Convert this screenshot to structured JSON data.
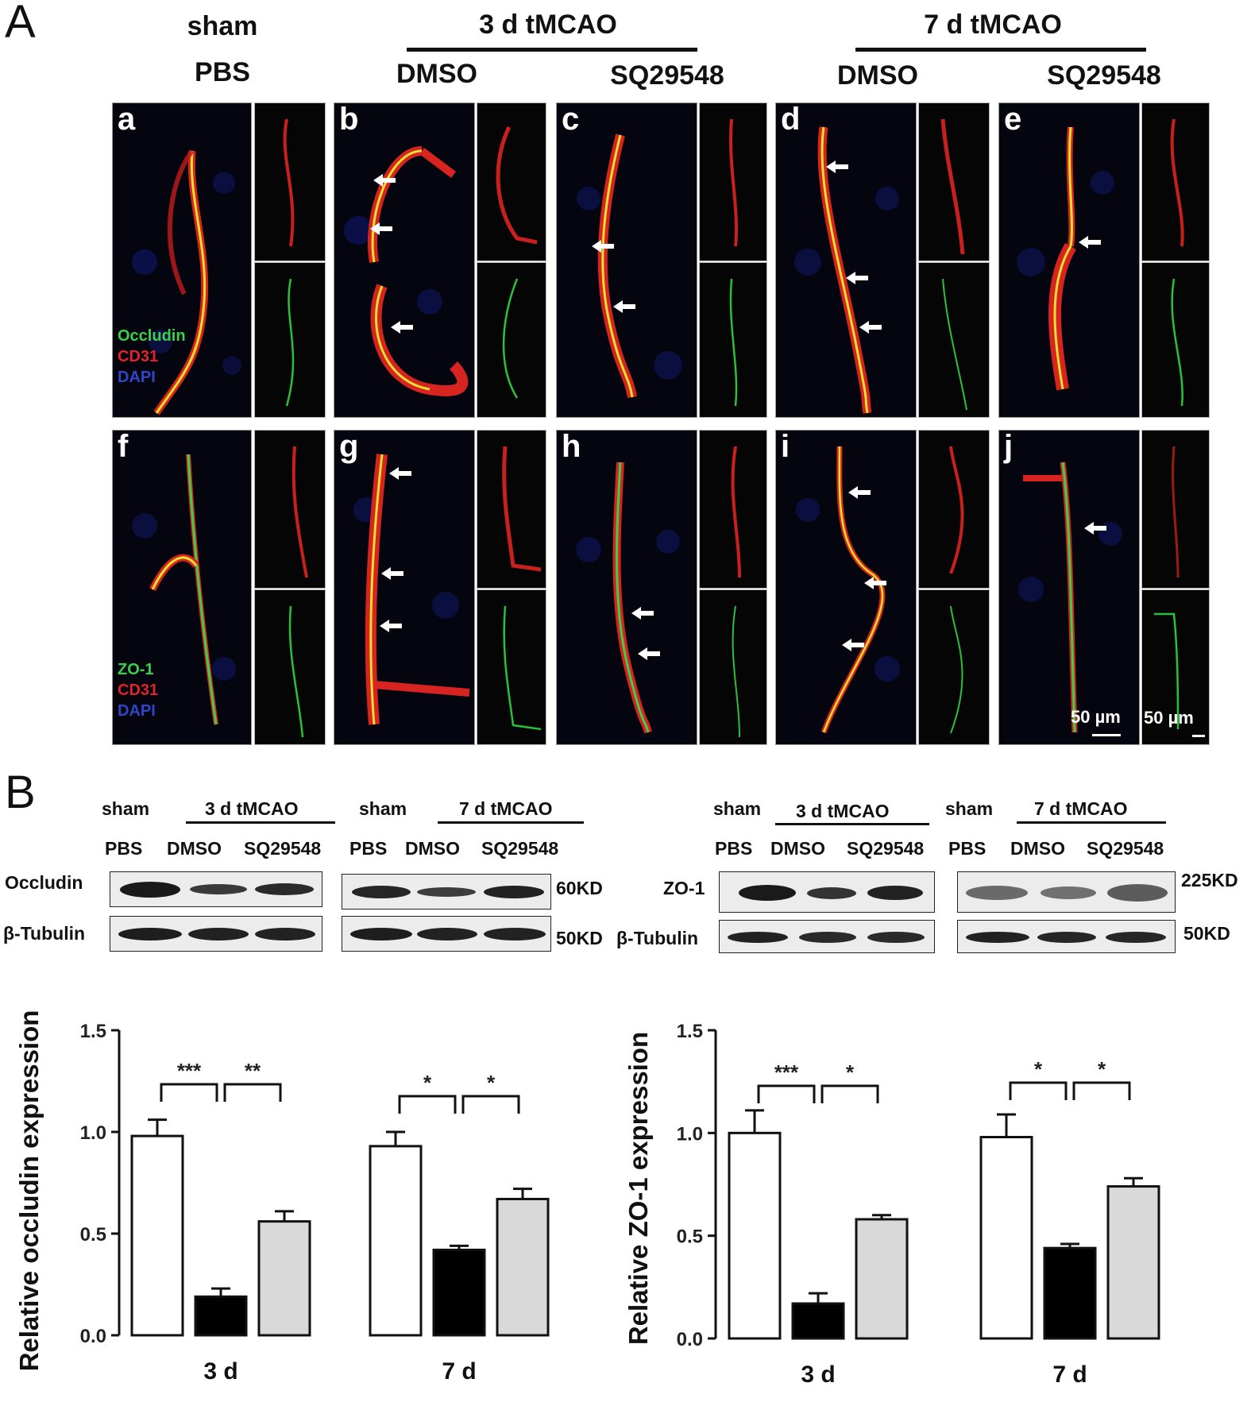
{
  "panelA": {
    "letter": "A",
    "groups": {
      "sham": "sham",
      "tmcao3": "3 d tMCAO",
      "tmcao7": "7 d tMCAO"
    },
    "conditions": [
      "PBS",
      "DMSO",
      "SQ29548",
      "DMSO",
      "SQ29548"
    ],
    "tiles_row1": [
      "a",
      "b",
      "c",
      "d",
      "e"
    ],
    "tiles_row2": [
      "f",
      "g",
      "h",
      "i",
      "j"
    ],
    "stain_row1": [
      "Occludin",
      "CD31",
      "DAPI"
    ],
    "stain_row2": [
      "ZO-1",
      "CD31",
      "DAPI"
    ],
    "stain_colors": [
      "#3ad04a",
      "#e0242a",
      "#3046c8"
    ],
    "scale_bars": [
      "50 µm",
      "50 µm"
    ]
  },
  "panelB": {
    "letter": "B",
    "blots": {
      "sham": "sham",
      "tmcao3": "3 d tMCAO",
      "tmcao7": "7 d tMCAO",
      "lanes": [
        "PBS",
        "DMSO",
        "SQ29548"
      ],
      "occludin": "Occludin",
      "zo1": "ZO-1",
      "tubulin": "β-Tubulin",
      "mw_occludin": "60KD",
      "mw_tubulin": "50KD",
      "mw_zo1": "225KD"
    }
  },
  "chart_data": [
    {
      "type": "bar",
      "ylabel": "Relative occludin expression",
      "ylim": [
        0,
        1.5
      ],
      "yticks": [
        "0.0",
        "0.5",
        "1.0",
        "1.5"
      ],
      "categories": [
        "3 d",
        "7 d"
      ],
      "series": [
        {
          "name": "PBS",
          "values": [
            0.98,
            0.93
          ],
          "errors": [
            0.08,
            0.07
          ],
          "fill": "#ffffff"
        },
        {
          "name": "DMSO",
          "values": [
            0.19,
            0.42
          ],
          "errors": [
            0.04,
            0.02
          ],
          "fill": "#000000"
        },
        {
          "name": "SQ29548",
          "values": [
            0.56,
            0.67
          ],
          "errors": [
            0.05,
            0.05
          ],
          "fill": "#d9d9d9"
        }
      ],
      "significance": [
        {
          "group": 0,
          "from": 0,
          "to": 1,
          "label": "***"
        },
        {
          "group": 0,
          "from": 1,
          "to": 2,
          "label": "**"
        },
        {
          "group": 1,
          "from": 0,
          "to": 1,
          "label": "*"
        },
        {
          "group": 1,
          "from": 1,
          "to": 2,
          "label": "*"
        }
      ]
    },
    {
      "type": "bar",
      "ylabel": "Relative ZO-1 expression",
      "ylim": [
        0,
        1.5
      ],
      "yticks": [
        "0.0",
        "0.5",
        "1.0",
        "1.5"
      ],
      "categories": [
        "3 d",
        "7 d"
      ],
      "series": [
        {
          "name": "PBS",
          "values": [
            1.0,
            0.98
          ],
          "errors": [
            0.11,
            0.11
          ],
          "fill": "#ffffff"
        },
        {
          "name": "DMSO",
          "values": [
            0.17,
            0.44
          ],
          "errors": [
            0.05,
            0.02
          ],
          "fill": "#000000"
        },
        {
          "name": "SQ29548",
          "values": [
            0.58,
            0.74
          ],
          "errors": [
            0.02,
            0.04
          ],
          "fill": "#d9d9d9"
        }
      ],
      "significance": [
        {
          "group": 0,
          "from": 0,
          "to": 1,
          "label": "***"
        },
        {
          "group": 0,
          "from": 1,
          "to": 2,
          "label": "*"
        },
        {
          "group": 1,
          "from": 0,
          "to": 1,
          "label": "*"
        },
        {
          "group": 1,
          "from": 1,
          "to": 2,
          "label": "*"
        }
      ]
    }
  ]
}
